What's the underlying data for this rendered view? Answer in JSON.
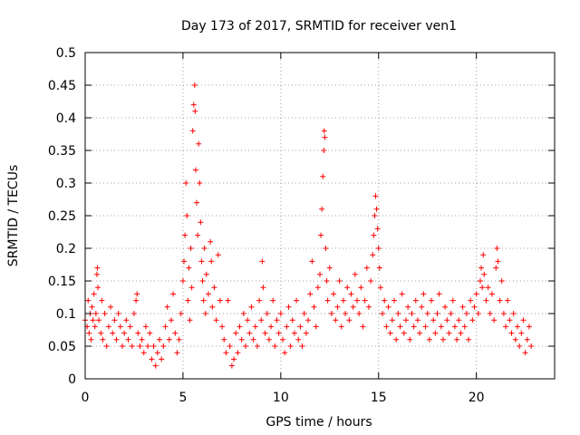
{
  "chart_data": {
    "type": "scatter",
    "title": "Day 173 of 2017, SRMTID for receiver ven1",
    "xlabel": "GPS time / hours",
    "ylabel": "SRMTID / TECUs",
    "xlim": [
      0,
      24
    ],
    "ylim": [
      0,
      0.5
    ],
    "x_ticks": [
      0,
      5,
      10,
      15,
      20
    ],
    "x_tick_labels": [
      "0",
      "5",
      "10",
      "15",
      "20"
    ],
    "y_ticks": [
      0,
      0.05,
      0.1,
      0.15,
      0.2,
      0.25,
      0.3,
      0.35,
      0.4,
      0.45,
      0.5
    ],
    "y_tick_labels": [
      "0",
      "0.05",
      "0.1",
      "0.15",
      "0.2",
      "0.25",
      "0.3",
      "0.35",
      "0.4",
      "0.45",
      "0.5"
    ],
    "grid": true,
    "marker": "+",
    "color": "#ff0000",
    "series": [
      {
        "name": "SRMTID",
        "points": [
          [
            0.0,
            0.09
          ],
          [
            0.1,
            0.08
          ],
          [
            0.15,
            0.12
          ],
          [
            0.2,
            0.07
          ],
          [
            0.25,
            0.1
          ],
          [
            0.3,
            0.06
          ],
          [
            0.35,
            0.11
          ],
          [
            0.4,
            0.09
          ],
          [
            0.45,
            0.13
          ],
          [
            0.5,
            0.08
          ],
          [
            0.55,
            0.1
          ],
          [
            0.6,
            0.16
          ],
          [
            0.62,
            0.17
          ],
          [
            0.65,
            0.14
          ],
          [
            0.7,
            0.09
          ],
          [
            0.8,
            0.07
          ],
          [
            0.85,
            0.12
          ],
          [
            0.9,
            0.06
          ],
          [
            1.0,
            0.1
          ],
          [
            1.1,
            0.05
          ],
          [
            1.2,
            0.08
          ],
          [
            1.3,
            0.11
          ],
          [
            1.4,
            0.07
          ],
          [
            1.5,
            0.09
          ],
          [
            1.6,
            0.06
          ],
          [
            1.7,
            0.1
          ],
          [
            1.8,
            0.08
          ],
          [
            1.9,
            0.05
          ],
          [
            2.0,
            0.07
          ],
          [
            2.1,
            0.09
          ],
          [
            2.2,
            0.06
          ],
          [
            2.3,
            0.08
          ],
          [
            2.4,
            0.05
          ],
          [
            2.5,
            0.1
          ],
          [
            2.6,
            0.12
          ],
          [
            2.65,
            0.13
          ],
          [
            2.7,
            0.07
          ],
          [
            2.8,
            0.05
          ],
          [
            2.9,
            0.06
          ],
          [
            3.0,
            0.04
          ],
          [
            3.1,
            0.08
          ],
          [
            3.2,
            0.05
          ],
          [
            3.3,
            0.07
          ],
          [
            3.4,
            0.03
          ],
          [
            3.5,
            0.05
          ],
          [
            3.6,
            0.02
          ],
          [
            3.7,
            0.04
          ],
          [
            3.8,
            0.06
          ],
          [
            3.9,
            0.03
          ],
          [
            4.0,
            0.05
          ],
          [
            4.1,
            0.08
          ],
          [
            4.2,
            0.11
          ],
          [
            4.3,
            0.06
          ],
          [
            4.4,
            0.09
          ],
          [
            4.5,
            0.13
          ],
          [
            4.6,
            0.07
          ],
          [
            4.7,
            0.04
          ],
          [
            4.8,
            0.06
          ],
          [
            4.9,
            0.1
          ],
          [
            5.0,
            0.15
          ],
          [
            5.05,
            0.18
          ],
          [
            5.1,
            0.22
          ],
          [
            5.15,
            0.3
          ],
          [
            5.2,
            0.25
          ],
          [
            5.25,
            0.12
          ],
          [
            5.3,
            0.17
          ],
          [
            5.35,
            0.09
          ],
          [
            5.4,
            0.2
          ],
          [
            5.45,
            0.14
          ],
          [
            5.5,
            0.38
          ],
          [
            5.55,
            0.42
          ],
          [
            5.6,
            0.45
          ],
          [
            5.62,
            0.41
          ],
          [
            5.65,
            0.32
          ],
          [
            5.7,
            0.27
          ],
          [
            5.75,
            0.22
          ],
          [
            5.8,
            0.36
          ],
          [
            5.85,
            0.3
          ],
          [
            5.9,
            0.24
          ],
          [
            5.95,
            0.18
          ],
          [
            6.0,
            0.15
          ],
          [
            6.05,
            0.12
          ],
          [
            6.1,
            0.2
          ],
          [
            6.15,
            0.1
          ],
          [
            6.2,
            0.16
          ],
          [
            6.3,
            0.13
          ],
          [
            6.4,
            0.21
          ],
          [
            6.45,
            0.18
          ],
          [
            6.5,
            0.11
          ],
          [
            6.6,
            0.14
          ],
          [
            6.7,
            0.09
          ],
          [
            6.8,
            0.19
          ],
          [
            6.9,
            0.12
          ],
          [
            7.0,
            0.08
          ],
          [
            7.1,
            0.06
          ],
          [
            7.2,
            0.04
          ],
          [
            7.3,
            0.12
          ],
          [
            7.4,
            0.05
          ],
          [
            7.5,
            0.02
          ],
          [
            7.6,
            0.03
          ],
          [
            7.7,
            0.07
          ],
          [
            7.8,
            0.04
          ],
          [
            7.9,
            0.08
          ],
          [
            8.0,
            0.06
          ],
          [
            8.1,
            0.1
          ],
          [
            8.2,
            0.05
          ],
          [
            8.3,
            0.09
          ],
          [
            8.4,
            0.07
          ],
          [
            8.5,
            0.11
          ],
          [
            8.6,
            0.06
          ],
          [
            8.7,
            0.08
          ],
          [
            8.8,
            0.05
          ],
          [
            8.9,
            0.12
          ],
          [
            9.0,
            0.09
          ],
          [
            9.05,
            0.18
          ],
          [
            9.1,
            0.14
          ],
          [
            9.2,
            0.07
          ],
          [
            9.3,
            0.1
          ],
          [
            9.4,
            0.06
          ],
          [
            9.5,
            0.08
          ],
          [
            9.6,
            0.12
          ],
          [
            9.7,
            0.05
          ],
          [
            9.8,
            0.09
          ],
          [
            9.9,
            0.07
          ],
          [
            10.0,
            0.1
          ],
          [
            10.1,
            0.06
          ],
          [
            10.2,
            0.04
          ],
          [
            10.3,
            0.08
          ],
          [
            10.4,
            0.11
          ],
          [
            10.5,
            0.05
          ],
          [
            10.6,
            0.09
          ],
          [
            10.7,
            0.07
          ],
          [
            10.8,
            0.12
          ],
          [
            10.9,
            0.06
          ],
          [
            11.0,
            0.08
          ],
          [
            11.1,
            0.05
          ],
          [
            11.2,
            0.1
          ],
          [
            11.3,
            0.07
          ],
          [
            11.4,
            0.09
          ],
          [
            11.5,
            0.13
          ],
          [
            11.6,
            0.18
          ],
          [
            11.7,
            0.11
          ],
          [
            11.8,
            0.08
          ],
          [
            11.9,
            0.14
          ],
          [
            12.0,
            0.16
          ],
          [
            12.05,
            0.22
          ],
          [
            12.1,
            0.26
          ],
          [
            12.15,
            0.31
          ],
          [
            12.2,
            0.35
          ],
          [
            12.22,
            0.38
          ],
          [
            12.25,
            0.37
          ],
          [
            12.3,
            0.2
          ],
          [
            12.35,
            0.15
          ],
          [
            12.4,
            0.12
          ],
          [
            12.5,
            0.17
          ],
          [
            12.6,
            0.1
          ],
          [
            12.7,
            0.13
          ],
          [
            12.8,
            0.09
          ],
          [
            12.9,
            0.11
          ],
          [
            13.0,
            0.15
          ],
          [
            13.1,
            0.08
          ],
          [
            13.2,
            0.12
          ],
          [
            13.3,
            0.1
          ],
          [
            13.4,
            0.14
          ],
          [
            13.5,
            0.09
          ],
          [
            13.6,
            0.13
          ],
          [
            13.7,
            0.11
          ],
          [
            13.8,
            0.16
          ],
          [
            13.9,
            0.12
          ],
          [
            14.0,
            0.1
          ],
          [
            14.1,
            0.14
          ],
          [
            14.2,
            0.08
          ],
          [
            14.3,
            0.12
          ],
          [
            14.4,
            0.17
          ],
          [
            14.5,
            0.11
          ],
          [
            14.6,
            0.15
          ],
          [
            14.7,
            0.19
          ],
          [
            14.75,
            0.22
          ],
          [
            14.8,
            0.25
          ],
          [
            14.85,
            0.28
          ],
          [
            14.9,
            0.26
          ],
          [
            14.95,
            0.23
          ],
          [
            15.0,
            0.2
          ],
          [
            15.05,
            0.17
          ],
          [
            15.1,
            0.14
          ],
          [
            15.2,
            0.1
          ],
          [
            15.3,
            0.12
          ],
          [
            15.4,
            0.08
          ],
          [
            15.5,
            0.11
          ],
          [
            15.6,
            0.07
          ],
          [
            15.7,
            0.09
          ],
          [
            15.8,
            0.12
          ],
          [
            15.9,
            0.06
          ],
          [
            16.0,
            0.1
          ],
          [
            16.1,
            0.08
          ],
          [
            16.2,
            0.13
          ],
          [
            16.3,
            0.07
          ],
          [
            16.4,
            0.09
          ],
          [
            16.5,
            0.11
          ],
          [
            16.6,
            0.06
          ],
          [
            16.7,
            0.1
          ],
          [
            16.8,
            0.08
          ],
          [
            16.9,
            0.12
          ],
          [
            17.0,
            0.09
          ],
          [
            17.1,
            0.07
          ],
          [
            17.2,
            0.11
          ],
          [
            17.3,
            0.13
          ],
          [
            17.4,
            0.08
          ],
          [
            17.5,
            0.1
          ],
          [
            17.6,
            0.06
          ],
          [
            17.7,
            0.12
          ],
          [
            17.8,
            0.09
          ],
          [
            17.9,
            0.07
          ],
          [
            18.0,
            0.1
          ],
          [
            18.1,
            0.13
          ],
          [
            18.2,
            0.08
          ],
          [
            18.3,
            0.06
          ],
          [
            18.4,
            0.11
          ],
          [
            18.5,
            0.09
          ],
          [
            18.6,
            0.07
          ],
          [
            18.7,
            0.1
          ],
          [
            18.8,
            0.12
          ],
          [
            18.9,
            0.08
          ],
          [
            19.0,
            0.06
          ],
          [
            19.1,
            0.09
          ],
          [
            19.2,
            0.07
          ],
          [
            19.3,
            0.11
          ],
          [
            19.4,
            0.08
          ],
          [
            19.5,
            0.1
          ],
          [
            19.6,
            0.06
          ],
          [
            19.7,
            0.12
          ],
          [
            19.8,
            0.09
          ],
          [
            19.9,
            0.11
          ],
          [
            20.0,
            0.13
          ],
          [
            20.1,
            0.1
          ],
          [
            20.2,
            0.15
          ],
          [
            20.25,
            0.17
          ],
          [
            20.3,
            0.14
          ],
          [
            20.35,
            0.19
          ],
          [
            20.4,
            0.16
          ],
          [
            20.5,
            0.12
          ],
          [
            20.6,
            0.14
          ],
          [
            20.7,
            0.1
          ],
          [
            20.8,
            0.13
          ],
          [
            20.9,
            0.09
          ],
          [
            21.0,
            0.17
          ],
          [
            21.05,
            0.2
          ],
          [
            21.1,
            0.18
          ],
          [
            21.2,
            0.12
          ],
          [
            21.3,
            0.15
          ],
          [
            21.4,
            0.1
          ],
          [
            21.5,
            0.08
          ],
          [
            21.6,
            0.12
          ],
          [
            21.7,
            0.09
          ],
          [
            21.8,
            0.07
          ],
          [
            21.9,
            0.1
          ],
          [
            22.0,
            0.06
          ],
          [
            22.1,
            0.08
          ],
          [
            22.2,
            0.05
          ],
          [
            22.3,
            0.07
          ],
          [
            22.4,
            0.09
          ],
          [
            22.5,
            0.04
          ],
          [
            22.6,
            0.06
          ],
          [
            22.7,
            0.08
          ],
          [
            22.8,
            0.05
          ]
        ]
      }
    ]
  }
}
